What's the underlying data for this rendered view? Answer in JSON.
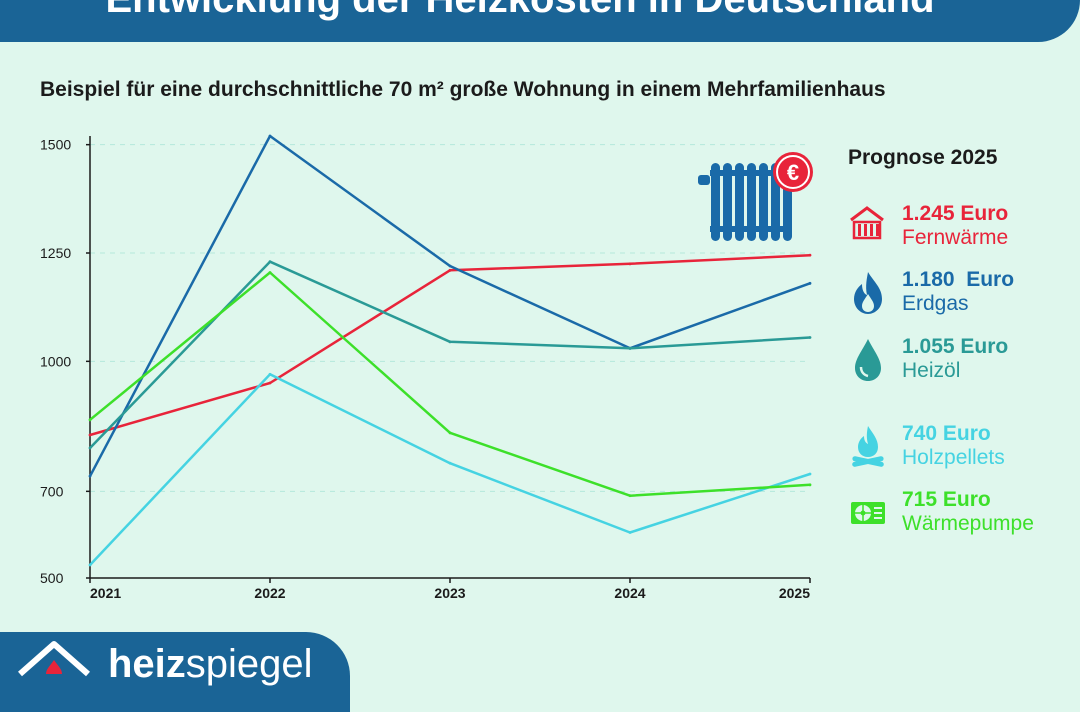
{
  "header": {
    "title": "Entwicklung der Heizkosten in Deutschland",
    "subtitle": "Beispiel für eine durchschnittliche 70 m² große Wohnung in einem Mehrfamilienhaus"
  },
  "legend": {
    "title": "Prognose 2025",
    "items": [
      {
        "value": "1.245 Euro",
        "name": "Fernwärme",
        "color": "#e8243a",
        "icon": "radiator-icon"
      },
      {
        "value": "1.180  Euro",
        "name": "Erdgas",
        "color": "#1a6aa8",
        "icon": "flame-icon"
      },
      {
        "value": "1.055 Euro",
        "name": "Heizöl",
        "color": "#2a9a96",
        "icon": "oil-drop-icon"
      },
      {
        "value": "740 Euro",
        "name": "Holzpellets",
        "color": "#45d3e2",
        "icon": "wood-fire-icon"
      },
      {
        "value": "715 Euro",
        "name": "Wärmepumpe",
        "color": "#3de02a",
        "icon": "heat-pump-icon"
      }
    ]
  },
  "decor": {
    "euro_symbol": "€",
    "accent": "#e8243a"
  },
  "logo": {
    "text_bold": "heiz",
    "text_light": "spiegel"
  },
  "chart_data": {
    "type": "line",
    "categories": [
      "2021",
      "2022",
      "2023",
      "2024",
      "2025"
    ],
    "y_ticks": [
      "500",
      "700",
      "1000",
      "1250",
      "1500"
    ],
    "ylim": [
      500,
      1520
    ],
    "grid": "horizontal dashed",
    "series": [
      {
        "name": "Fernwärme",
        "color": "#e8243a",
        "values": [
          830,
          950,
          1210,
          1225,
          1245
        ]
      },
      {
        "name": "Erdgas",
        "color": "#1a6aa8",
        "values": [
          735,
          1520,
          1220,
          1030,
          1180
        ]
      },
      {
        "name": "Heizöl",
        "color": "#2a9a96",
        "values": [
          800,
          1230,
          1045,
          1030,
          1055
        ]
      },
      {
        "name": "Holzpellets",
        "color": "#45d3e2",
        "values": [
          530,
          970,
          765,
          605,
          740
        ]
      },
      {
        "name": "Wärmepumpe",
        "color": "#3de02a",
        "values": [
          865,
          1205,
          835,
          690,
          715
        ]
      }
    ]
  }
}
